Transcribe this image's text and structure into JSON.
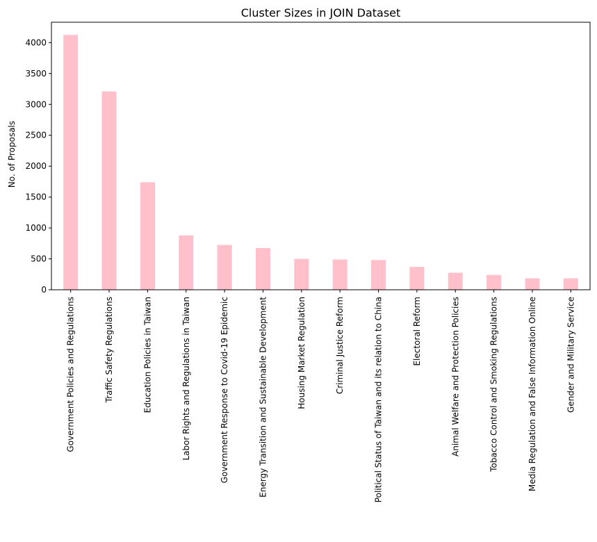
{
  "chart_data": {
    "type": "bar",
    "title": "Cluster Sizes in JOIN Dataset",
    "xlabel": "",
    "ylabel": "No. of Proposals",
    "ylim": [
      0,
      4330
    ],
    "yticks": [
      0,
      500,
      1000,
      1500,
      2000,
      2500,
      3000,
      3500,
      4000
    ],
    "grid": false,
    "bar_color": "#ffc0cb",
    "categories": [
      "Government Policies and Regulations",
      "Traffic Safety Regulations",
      "Education Policies in Taiwan",
      "Labor Rights and Regulations in Taiwan",
      "Government Response to Covid-19 Epidemic",
      "Energy Transition and Sustainable Development",
      "Housing Market Regulation",
      "Criminal Justice Reform",
      "Political Status of Taiwan and its relation to China",
      "Electoral Reform",
      "Animal Welfare and Protection Policies",
      "Tobacco Control and Smoking Regulations",
      "Media Regulation and False Information Online",
      "Gender and Military Service"
    ],
    "values": [
      4125,
      3210,
      1740,
      880,
      725,
      675,
      500,
      490,
      480,
      370,
      275,
      240,
      185,
      185
    ]
  }
}
